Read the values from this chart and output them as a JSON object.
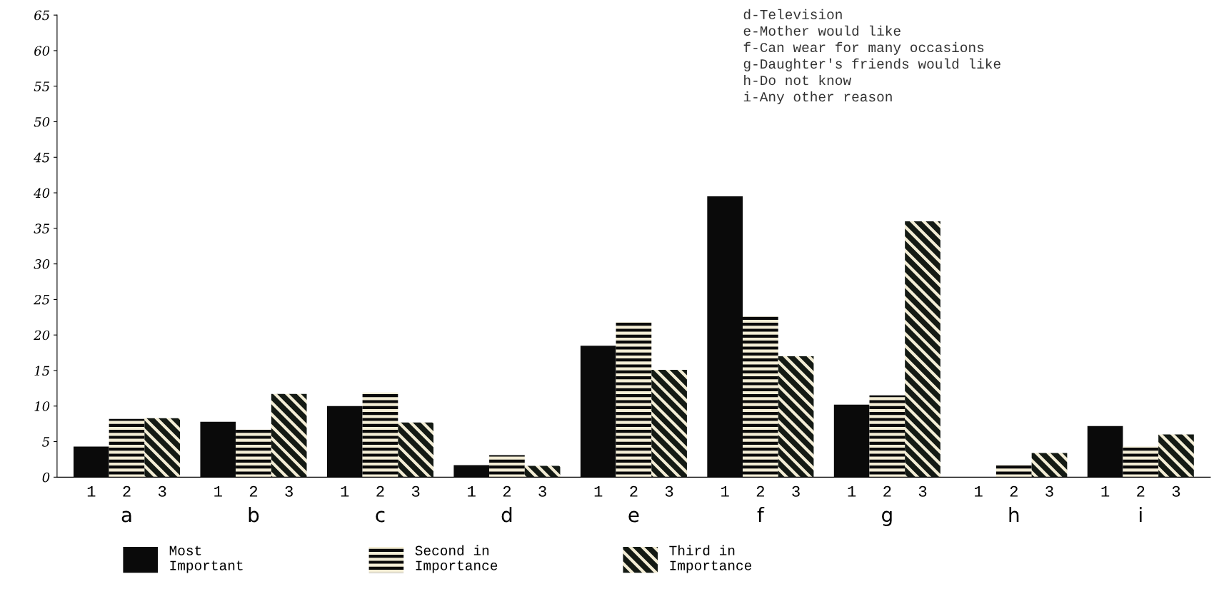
{
  "chart_data": {
    "type": "bar",
    "categories": [
      "a",
      "b",
      "c",
      "d",
      "e",
      "f",
      "g",
      "h",
      "i"
    ],
    "series": [
      {
        "name": "Most\nImportant",
        "color": "#0a0a0a",
        "values": [
          4.3,
          7.8,
          10,
          1.7,
          18.5,
          39.5,
          10.2,
          0,
          7.2
        ]
      },
      {
        "name": "Second in\nImportance",
        "color": "#f3edd5",
        "values": [
          8.2,
          6.7,
          11.9,
          3.1,
          21.8,
          22.6,
          11.5,
          1.7,
          4.3
        ]
      },
      {
        "name": "Third in\nImportance",
        "color": "#141a14",
        "values": [
          8.3,
          11.7,
          7.7,
          1.6,
          15.1,
          17.0,
          36.0,
          3.4,
          6.0
        ]
      }
    ],
    "ylim": [
      0,
      65
    ],
    "yticks": [
      0,
      5,
      10,
      15,
      20,
      25,
      30,
      35,
      40,
      45,
      50,
      55,
      60,
      65
    ],
    "grid": false,
    "legend": "bottom",
    "annotations": [
      "d-Television\ne-Mother would like\nf-Can wear for many occasions\ng-Daughter's friends would like\nh-Do not know\ni-Any other reason",
      {
        "text": "1",
        "x": "a",
        "y": 0
      },
      {
        "text": "2",
        "x": "a",
        "y": 0
      },
      {
        "text": "3",
        "x": "a",
        "y": 0
      },
      {
        "text": "1",
        "x": "b",
        "y": 0
      },
      {
        "text": "2",
        "x": "b",
        "y": 0
      },
      {
        "text": "3",
        "x": "b",
        "y": 0
      },
      {
        "text": "1",
        "x": "c",
        "y": 0
      },
      {
        "text": "2",
        "x": "c",
        "y": 0
      },
      {
        "text": "3",
        "x": "c",
        "y": 0
      },
      {
        "text": "1",
        "x": "d",
        "y": 0
      },
      {
        "text": "2",
        "x": "d",
        "y": 0
      },
      {
        "text": "3",
        "x": "d",
        "y": 0
      },
      {
        "text": "1",
        "x": "e",
        "y": 0
      },
      {
        "text": "2",
        "x": "e",
        "y": 0
      },
      {
        "text": "3",
        "x": "e",
        "y": 0
      },
      {
        "text": "1",
        "x": "f",
        "y": 0
      },
      {
        "text": "2",
        "x": "f",
        "y": 0
      },
      {
        "text": "3",
        "x": "f",
        "y": 0
      },
      {
        "text": "1",
        "x": "g",
        "y": 0
      },
      {
        "text": "2",
        "x": "g",
        "y": 0
      },
      {
        "text": "3",
        "x": "g",
        "y": 0
      },
      {
        "text": "1",
        "x": "h",
        "y": 0
      },
      {
        "text": "2",
        "x": "h",
        "y": 0
      },
      {
        "text": "3",
        "x": "h",
        "y": 0
      },
      {
        "text": "1",
        "x": "i",
        "y": 0
      },
      {
        "text": "2",
        "x": "i",
        "y": 0
      },
      {
        "text": "3",
        "x": "i",
        "y": 0
      }
    ]
  }
}
